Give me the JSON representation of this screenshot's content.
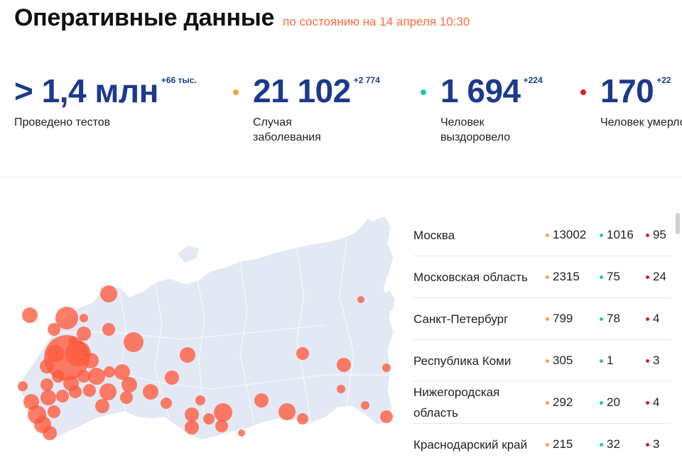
{
  "header": {
    "title": "Оперативные данные",
    "as_of": "по состоянию на 14 апреля 10:30"
  },
  "stats": [
    {
      "value": "> 1,4 млн",
      "delta": "+66 тыс.",
      "label": "Проведено тестов",
      "dot_color": ""
    },
    {
      "value": "21 102",
      "delta": "+2 774",
      "label": "Случая заболевания",
      "dot_color": "#f7a440"
    },
    {
      "value": "1 694",
      "delta": "+224",
      "label": "Человек выздоровело",
      "dot_color": "#27c3a8"
    },
    {
      "value": "170",
      "delta": "+22",
      "label": "Человек умерло",
      "dot_color": "#d0232a"
    }
  ],
  "colors": {
    "accent": "#ff6a3d",
    "value_blue": "#1c3a8c",
    "map_fill": "#e3e8f5",
    "bubble": "#ff5a3c",
    "cases": "#f7a440",
    "recovered": "#27c3a8",
    "deaths": "#d0232a"
  },
  "regions": [
    {
      "name": "Москва",
      "cases": "13002",
      "recovered": "1016",
      "deaths": "95"
    },
    {
      "name": "Московская область",
      "cases": "2315",
      "recovered": "75",
      "deaths": "24"
    },
    {
      "name": "Санкт-Петербург",
      "cases": "799",
      "recovered": "78",
      "deaths": "4"
    },
    {
      "name": "Республика Коми",
      "cases": "305",
      "recovered": "1",
      "deaths": "3"
    },
    {
      "name": "Нижегородская область",
      "cases": "292",
      "recovered": "20",
      "deaths": "4"
    },
    {
      "name": "Краснодарский край",
      "cases": "215",
      "recovered": "32",
      "deaths": "3"
    }
  ]
}
